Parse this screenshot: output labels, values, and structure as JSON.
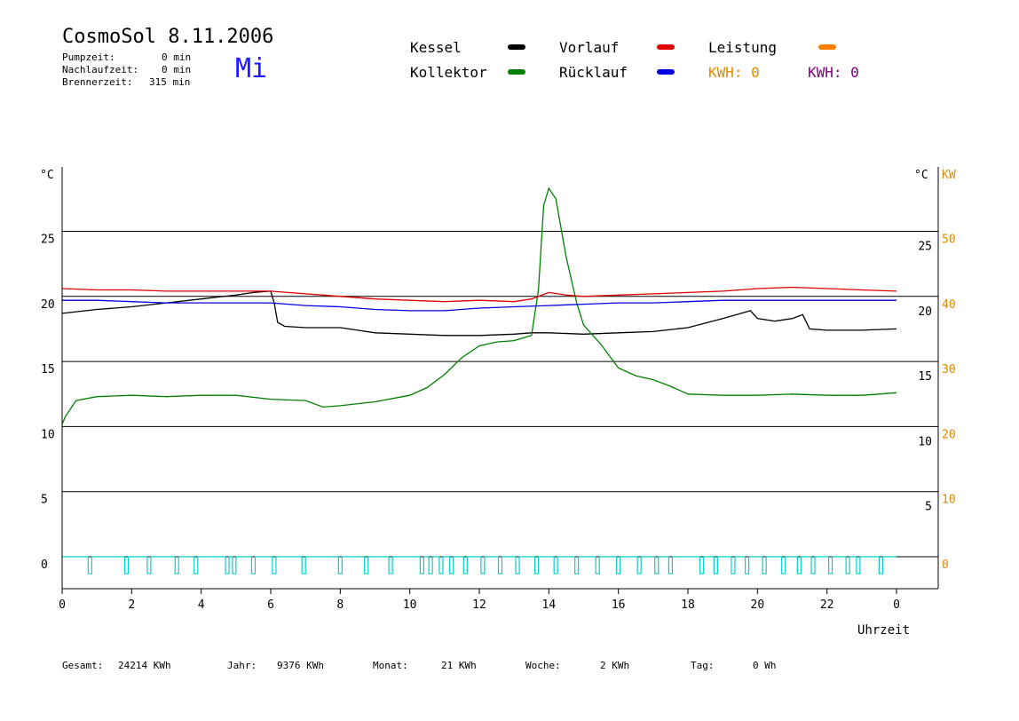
{
  "header": {
    "title": "CosmoSol 8.11.2006",
    "day": "Mi",
    "stats": [
      {
        "label": "Pumpzeit:",
        "value": "0 min"
      },
      {
        "label": "Nachlaufzeit:",
        "value": "0 min"
      },
      {
        "label": "Brennerzeit:",
        "value": "315 min"
      }
    ]
  },
  "legend": {
    "kessel": {
      "label": "Kessel",
      "color": "#000000"
    },
    "kollektor": {
      "label": "Kollektor",
      "color": "#008000"
    },
    "vorlauf": {
      "label": "Vorlauf",
      "color": "#e00000"
    },
    "ruecklauf": {
      "label": "Rücklauf",
      "color": "#0000e0"
    },
    "leistung": {
      "label": "Leistung",
      "color": "#ff8000"
    },
    "kwh1": {
      "label": "KWH: 0",
      "color": "#e08a00"
    },
    "kwh2": {
      "label": "KWH: 0",
      "color": "#800080"
    }
  },
  "footer": [
    {
      "label": "Gesamt:",
      "value": "24214 KWh"
    },
    {
      "label": "Jahr:",
      "value": "9376 KWh"
    },
    {
      "label": "Monat:",
      "value": "21 KWh"
    },
    {
      "label": "Woche:",
      "value": "2 KWh"
    },
    {
      "label": "Tag:",
      "value": "0 Wh"
    }
  ],
  "chart_data": {
    "type": "line",
    "xlabel": "Uhrzeit",
    "ylabel_left": "°C",
    "ylabel_right": "°C",
    "ylabel_right2": "KW",
    "xlim": [
      0,
      24
    ],
    "ylim": [
      -1.8,
      30.2
    ],
    "x_ticks": [
      "0",
      "2",
      "4",
      "6",
      "8",
      "10",
      "12",
      "14",
      "16",
      "18",
      "20",
      "22",
      "0"
    ],
    "y_ticks_left": [
      "0",
      "5",
      "10",
      "15",
      "20",
      "25"
    ],
    "y_ticks_right": [
      "5",
      "10",
      "15",
      "20",
      "25"
    ],
    "y_ticks_kw": [
      "0",
      "10",
      "20",
      "30",
      "40",
      "50"
    ],
    "gridlines_y": [
      0,
      5,
      10,
      15,
      20,
      25
    ],
    "series": [
      {
        "name": "Kessel",
        "color": "#000000",
        "x": [
          0,
          1,
          2,
          3,
          4,
          5,
          5.5,
          6,
          6.1,
          6.2,
          6.4,
          7,
          8,
          8.5,
          9,
          10,
          11,
          12,
          13,
          13.5,
          14,
          15,
          16,
          17,
          18,
          19,
          19.8,
          20,
          20.5,
          21,
          21.3,
          21.5,
          22,
          23,
          24
        ],
        "y": [
          18.7,
          19,
          19.2,
          19.5,
          19.8,
          20.1,
          20.3,
          20.4,
          19.5,
          18.0,
          17.7,
          17.6,
          17.6,
          17.4,
          17.2,
          17.1,
          17.0,
          17.0,
          17.1,
          17.2,
          17.2,
          17.1,
          17.2,
          17.3,
          17.6,
          18.3,
          18.9,
          18.3,
          18.1,
          18.3,
          18.6,
          17.5,
          17.4,
          17.4,
          17.5
        ]
      },
      {
        "name": "Kollektor",
        "color": "#008000",
        "x": [
          0,
          0.1,
          0.4,
          1,
          2,
          3,
          4,
          5,
          6,
          7,
          7.5,
          8,
          9,
          10,
          10.5,
          11,
          11.5,
          12,
          12.5,
          13,
          13.5,
          13.7,
          13.85,
          14,
          14.2,
          14.5,
          14.8,
          15,
          15.5,
          16,
          16.5,
          17,
          17.5,
          18,
          19,
          20,
          21,
          22,
          23,
          23.5,
          24
        ],
        "y": [
          10.2,
          10.8,
          12.0,
          12.3,
          12.4,
          12.3,
          12.4,
          12.4,
          12.1,
          12.0,
          11.5,
          11.6,
          11.9,
          12.4,
          13.0,
          14.0,
          15.3,
          16.2,
          16.5,
          16.6,
          17.0,
          20.5,
          27.0,
          28.3,
          27.5,
          23.0,
          19.5,
          17.8,
          16.3,
          14.5,
          13.9,
          13.6,
          13.1,
          12.5,
          12.4,
          12.4,
          12.5,
          12.4,
          12.4,
          12.5,
          12.6
        ]
      },
      {
        "name": "Vorlauf",
        "color": "#e00000",
        "x": [
          0,
          1,
          2,
          3,
          4,
          5,
          6,
          7,
          7.5,
          8,
          9,
          10,
          11,
          12,
          13,
          13.5,
          14,
          14.5,
          15,
          16,
          17,
          18,
          19,
          19.5,
          20,
          21,
          22,
          23,
          24
        ],
        "y": [
          20.6,
          20.5,
          20.5,
          20.4,
          20.4,
          20.4,
          20.4,
          20.2,
          20.1,
          20.0,
          19.8,
          19.7,
          19.6,
          19.7,
          19.6,
          19.8,
          20.3,
          20.1,
          20.0,
          20.1,
          20.2,
          20.3,
          20.4,
          20.5,
          20.6,
          20.7,
          20.6,
          20.5,
          20.4
        ]
      },
      {
        "name": "Rücklauf",
        "color": "#0000e0",
        "x": [
          0,
          1,
          2,
          3,
          4,
          5,
          6,
          7,
          8,
          9,
          10,
          11,
          12,
          13,
          14,
          15,
          16,
          17,
          18,
          19,
          20,
          21,
          22,
          23,
          24
        ],
        "y": [
          19.7,
          19.7,
          19.6,
          19.5,
          19.5,
          19.5,
          19.5,
          19.3,
          19.2,
          19.0,
          18.9,
          18.9,
          19.1,
          19.2,
          19.3,
          19.4,
          19.5,
          19.5,
          19.6,
          19.7,
          19.7,
          19.7,
          19.7,
          19.7,
          19.7
        ]
      },
      {
        "name": "Pumpe",
        "color": "#00d0d0",
        "pulse_hours": [
          0.8,
          1.85,
          2.5,
          3.3,
          3.85,
          4.75,
          4.95,
          5.5,
          6.1,
          6.95,
          8.0,
          8.75,
          9.45,
          10.35,
          10.6,
          10.9,
          11.2,
          11.6,
          12.1,
          12.6,
          13.1,
          13.65,
          14.2,
          14.8,
          15.4,
          16.0,
          16.6,
          17.1,
          17.5,
          18.4,
          18.8,
          19.3,
          19.7,
          20.2,
          20.75,
          21.2,
          21.6,
          22.1,
          22.6,
          22.9,
          23.55
        ]
      }
    ]
  }
}
